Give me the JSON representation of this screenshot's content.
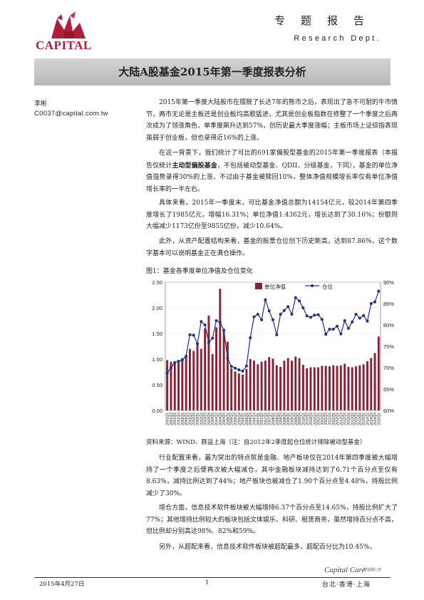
{
  "header": {
    "logo_text": "CAPITAL",
    "title": "专题报告",
    "dept": "Research Dept."
  },
  "main_title": "大陆A股基金2015年第一季度报表分析",
  "author": "李彬",
  "email": "C0037@capital.com.tw",
  "paragraphs": {
    "p1": "2015年第一季度大陆股市在摆脱了长达7年的熊市之后，表现出了急不可耐的牛市情节，两市无论是主板还是创业板均高歌猛进，尤其是创业板指数在修整了一个季度之后再次成为了领涨角色，单季度飙升达到57%，创历史最大季度涨幅；主板市场上证综指表现虽弱于创业板，但也录得近16%的上涨。",
    "p2_pre": "在这一背景下，我们统计了可比的691家偏股型基金的2015年第一季度报表（本报告仅统计",
    "p2_bold": "主动型偏股基金",
    "p2_post": "，不包括被动型基金、QDII、分级基金，下同），基金的单位净值强势录得30%的上涨，不过由于基金被赎回10%，整体净值规模增长率仅有单位净值增长率的一半左右。",
    "p3": "具体来看，2015年一季度末，可比基金净值总额为14154亿元，较2014年第四季度增长了1985亿元，增幅16.31%；单位净值1.4362元，增长达到了30.16%；份额则大幅减少1173亿份至9855亿份，减少10.64%。",
    "p4": "此外，从资产配置结构来看，基金的股票仓位创下历史新高，达到87.86%，这个数字基本可以说明基金正在满仓操作。",
    "p5": "行业配置来看，最为突出的特点就是金融、地产板块仅在2014年第四季度被大幅增持了一个季度之后便再次被大幅减仓，其中金融板块减持达到了6.71个百分点至仅有8.63%，减持比例达到了44%；地产板块也被减仓了1.90个百分点至4.48%，持股比例减少了30%。",
    "p6": "增仓方面，信息技术软件板块被大幅增持6.37个百分点至14.65%，持股比例扩大了77%；其他增持比例较大的板块包括文体娱乐、科研、租赁商务，虽然增持百分点不高，但比例却分别高达98%、82%和59%。",
    "p7": "另外，从超配来看，信息技术软件板块被超配最多，超配百分比为10.45%，"
  },
  "figure": {
    "caption": "图1：基金各季度单位净值及仓位变化",
    "source": "资料来源：WIND、群益上海（注：自2012年2季度起仓位统计排除被动型基金）"
  },
  "chart_data": {
    "type": "bar",
    "title": "",
    "xlabel": "",
    "ylabel": "",
    "ylim": [
      0,
      2.5
    ],
    "y2lim": [
      0.6,
      0.9
    ],
    "yticks": [
      "0.00",
      "0.50",
      "1.00",
      "1.50",
      "2.00",
      "2.50"
    ],
    "y2ticks": [
      "60%",
      "65%",
      "70%",
      "75%",
      "80%",
      "85%",
      "90%"
    ],
    "legend": {
      "placement": "top",
      "series_bar": "单位净值",
      "series_line": "仓位"
    },
    "colors": {
      "bar": "#8b2035",
      "line": "#1f2f8a"
    },
    "categories": [
      "2001Q1",
      "2001Q2",
      "2001Q3",
      "2001Q4",
      "2002Q1",
      "2002Q2",
      "2002Q3",
      "2002Q4",
      "2003Q1",
      "2003Q2",
      "2003Q3",
      "2003Q4",
      "2004Q1",
      "2004Q2",
      "2004Q3",
      "2004Q4",
      "2005Q1",
      "2005Q2",
      "2005Q3",
      "2005Q4",
      "2006Q1",
      "2006Q2",
      "2006Q3",
      "2006Q4",
      "2007Q1",
      "2007Q2",
      "2007Q3",
      "2007Q4",
      "2008Q1",
      "2008Q2",
      "2008Q3",
      "2008Q4",
      "2009Q1",
      "2009Q2",
      "2009Q3",
      "2009Q4",
      "2010Q1",
      "2010Q2",
      "2010Q3",
      "2010Q4",
      "2011Q1",
      "2011Q2",
      "2011Q3",
      "2011Q4",
      "2012Q1",
      "2012Q2",
      "2012Q3",
      "2012Q4",
      "2013Q1",
      "2013Q2",
      "2013Q3",
      "2013Q4",
      "2014Q1",
      "2014Q2",
      "2014Q3",
      "2014Q4",
      "2015Q1"
    ],
    "series": [
      {
        "name": "单位净值",
        "values": [
          0.98,
          0.95,
          0.93,
          0.98,
          1.02,
          1.07,
          1.2,
          1.16,
          1.28,
          1.2,
          1.6,
          1.85,
          1.1,
          1.62,
          2.37,
          1.55,
          1.34,
          0.82,
          0.76,
          0.72,
          0.7,
          0.81,
          1.0,
          0.97,
          0.9,
          0.95,
          0.97,
          1.04,
          1.01,
          0.88,
          0.85,
          0.97,
          1.02,
          0.97,
          1.05,
          1.02,
          0.89,
          0.82,
          0.84,
          0.84,
          0.84,
          0.87,
          0.87,
          0.86,
          0.88,
          0.87,
          0.88,
          0.91,
          0.85,
          0.84,
          0.86,
          0.88,
          0.9,
          0.96,
          1.02,
          1.12,
          1.44
        ]
      },
      {
        "name": "仓位",
        "values": [
          0.687,
          0.7,
          0.712,
          0.715,
          0.718,
          0.727,
          0.777,
          0.776,
          0.756,
          0.808,
          0.8,
          0.759,
          0.769,
          0.81,
          0.806,
          0.788,
          0.722,
          0.703,
          0.699,
          0.695,
          0.692,
          0.704,
          0.77,
          0.819,
          0.825,
          0.812,
          0.859,
          0.833,
          0.812,
          0.777,
          0.825,
          0.834,
          0.843,
          0.825,
          0.864,
          0.856,
          0.84,
          0.821,
          0.818,
          0.823,
          0.824,
          0.813,
          0.778,
          0.79,
          0.79,
          0.797,
          0.779,
          0.81,
          0.792,
          0.807,
          0.825,
          0.816,
          0.822,
          0.809,
          0.85,
          0.854,
          0.879
        ]
      }
    ]
  },
  "footer": {
    "date": "2015年4月27日",
    "page": "1",
    "cities": "台北·香港·上海",
    "brand": "Capital Care",
    "brand_sub": "群益關心您"
  }
}
